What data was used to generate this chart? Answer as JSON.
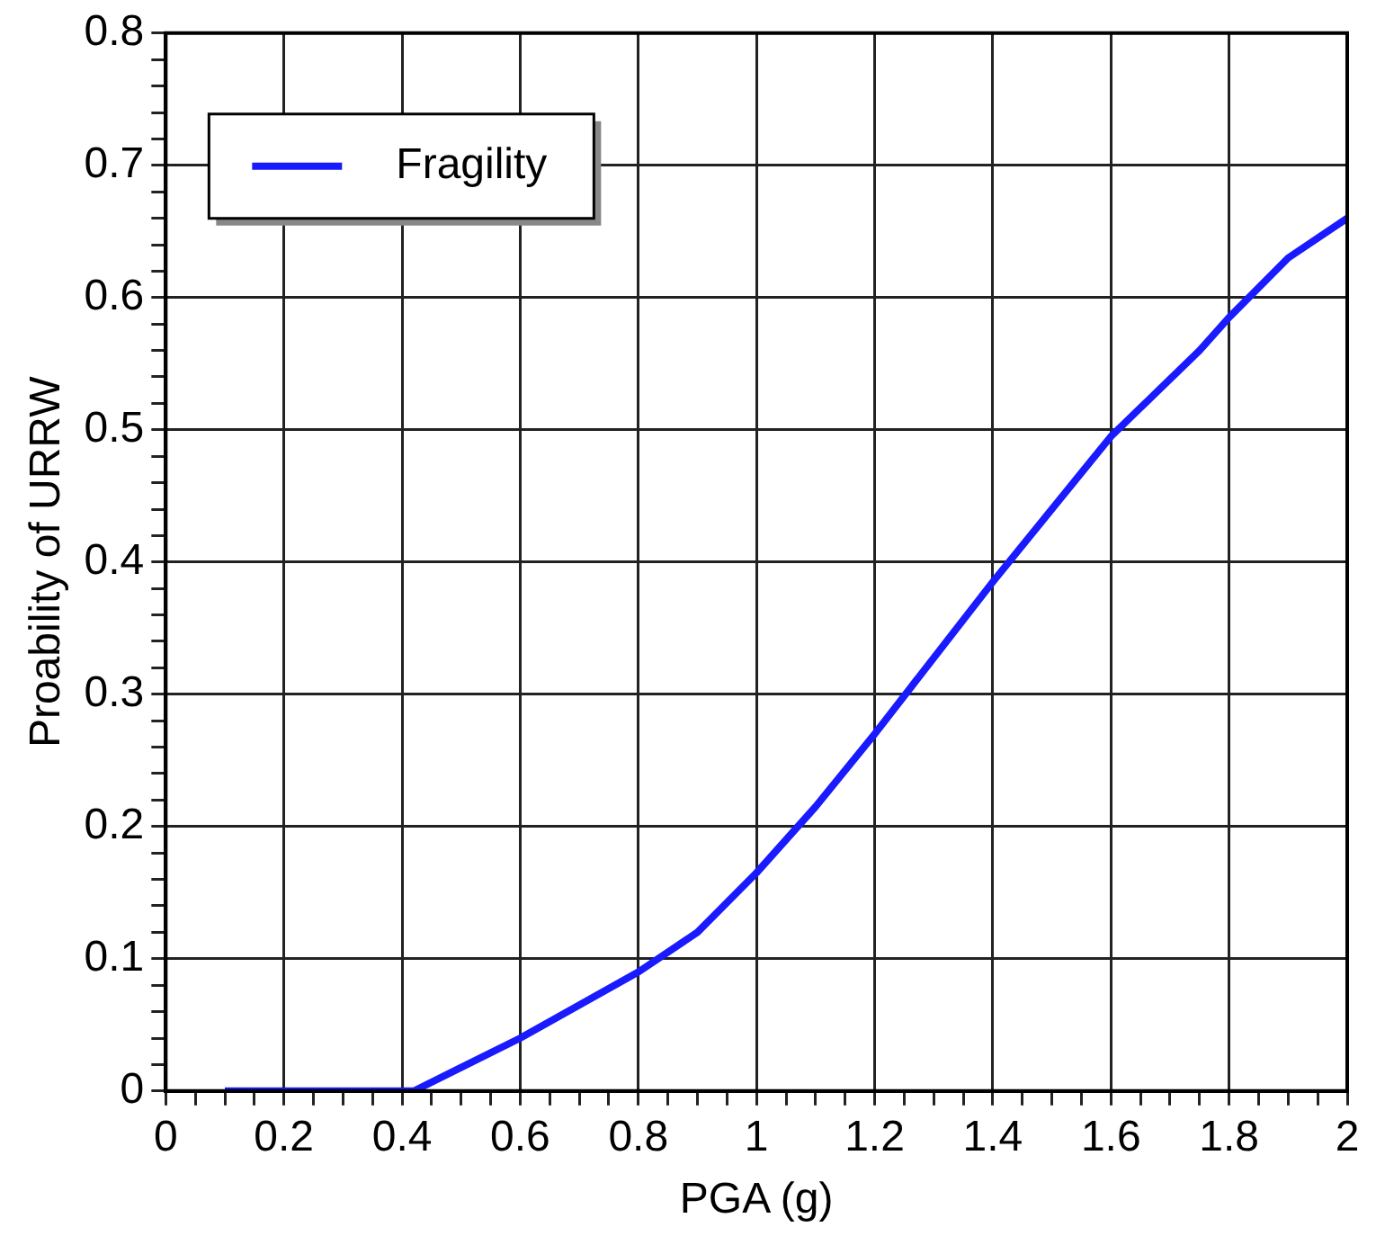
{
  "chart_data": {
    "type": "line",
    "xlabel": "PGA (g)",
    "ylabel": "Proability of URRW",
    "series": [
      {
        "name": "Fragility",
        "color": "#1a1aff",
        "x": [
          0.1,
          0.42,
          0.6,
          0.8,
          0.9,
          1.0,
          1.1,
          1.2,
          1.4,
          1.6,
          1.75,
          1.8,
          1.9,
          2.0
        ],
        "values": [
          0,
          0,
          0.04,
          0.09,
          0.12,
          0.165,
          0.215,
          0.27,
          0.385,
          0.495,
          0.56,
          0.585,
          0.63,
          0.66
        ]
      }
    ],
    "xlim": [
      0,
      2
    ],
    "xticks": [
      0,
      {
        "value": 0.05,
        "label": null
      },
      {
        "value": 0.1,
        "label": null
      },
      {
        "value": 0.15,
        "label": null
      },
      0.2,
      {
        "value": 0.25,
        "label": null
      },
      {
        "value": 0.3,
        "label": null
      },
      {
        "value": 0.35,
        "label": null
      },
      0.4,
      {
        "value": 0.45,
        "label": null
      },
      {
        "value": 0.5,
        "label": null
      },
      {
        "value": 0.55,
        "label": null
      },
      0.6,
      {
        "value": 0.65,
        "label": null
      },
      {
        "value": 0.7,
        "label": null
      },
      {
        "value": 0.75,
        "label": null
      },
      0.8,
      {
        "value": 0.85,
        "label": null
      },
      {
        "value": 0.9,
        "label": null
      },
      {
        "value": 0.95,
        "label": null
      },
      1,
      {
        "value": 1.05,
        "label": null
      },
      {
        "value": 1.1,
        "label": null
      },
      {
        "value": 1.15,
        "label": null
      },
      1.2,
      {
        "value": 1.25,
        "label": null
      },
      {
        "value": 1.3,
        "label": null
      },
      {
        "value": 1.35,
        "label": null
      },
      1.4,
      {
        "value": 1.45,
        "label": null
      },
      {
        "value": 1.5,
        "label": null
      },
      {
        "value": 1.55,
        "label": null
      },
      1.6,
      {
        "value": 1.65,
        "label": null
      },
      {
        "value": 1.7,
        "label": null
      },
      {
        "value": 1.75,
        "label": null
      },
      1.8,
      {
        "value": 1.85,
        "label": null
      },
      {
        "value": 1.9,
        "label": null
      },
      {
        "value": 1.95,
        "label": null
      },
      2
    ],
    "ylim": [
      0,
      0.8
    ],
    "yticks": [
      0,
      {
        "value": 0.02,
        "label": null
      },
      {
        "value": 0.04,
        "label": null
      },
      {
        "value": 0.06,
        "label": null
      },
      {
        "value": 0.08,
        "label": null
      },
      0.1,
      {
        "value": 0.12,
        "label": null
      },
      {
        "value": 0.14,
        "label": null
      },
      {
        "value": 0.16,
        "label": null
      },
      {
        "value": 0.18,
        "label": null
      },
      0.2,
      {
        "value": 0.22,
        "label": null
      },
      {
        "value": 0.24,
        "label": null
      },
      {
        "value": 0.26,
        "label": null
      },
      {
        "value": 0.28,
        "label": null
      },
      0.3,
      {
        "value": 0.32,
        "label": null
      },
      {
        "value": 0.34,
        "label": null
      },
      {
        "value": 0.36,
        "label": null
      },
      {
        "value": 0.38,
        "label": null
      },
      0.4,
      {
        "value": 0.42,
        "label": null
      },
      {
        "value": 0.44,
        "label": null
      },
      {
        "value": 0.46,
        "label": null
      },
      {
        "value": 0.48,
        "label": null
      },
      0.5,
      {
        "value": 0.52,
        "label": null
      },
      {
        "value": 0.54,
        "label": null
      },
      {
        "value": 0.56,
        "label": null
      },
      {
        "value": 0.58,
        "label": null
      },
      0.6,
      {
        "value": 0.62,
        "label": null
      },
      {
        "value": 0.64,
        "label": null
      },
      {
        "value": 0.66,
        "label": null
      },
      {
        "value": 0.68,
        "label": null
      },
      0.7,
      {
        "value": 0.72,
        "label": null
      },
      {
        "value": 0.74,
        "label": null
      },
      {
        "value": 0.76,
        "label": null
      },
      {
        "value": 0.78,
        "label": null
      },
      0.8
    ],
    "grid": true,
    "legend": "top left",
    "marker": "none",
    "line_style": "solid"
  }
}
